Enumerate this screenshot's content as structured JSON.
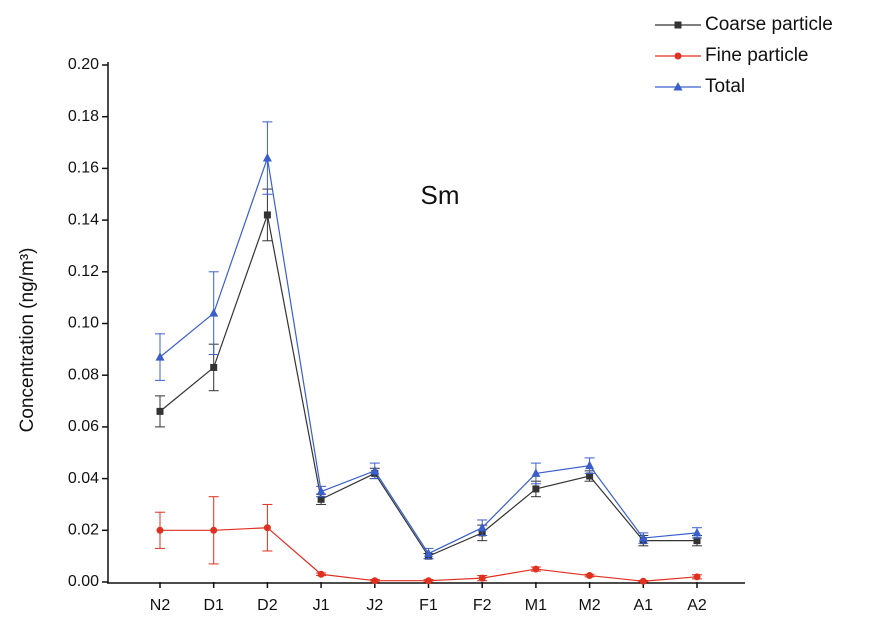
{
  "chart_data": {
    "type": "line",
    "title": "Sm",
    "y_label": "Concentration (ng/m³)",
    "categories": [
      "N2",
      "D1",
      "D2",
      "J1",
      "J2",
      "F1",
      "F2",
      "M1",
      "M2",
      "A1",
      "A2"
    ],
    "series": [
      {
        "name": "Coarse particle",
        "color": "#333333",
        "marker": "square",
        "values": [
          0.066,
          0.083,
          0.142,
          0.032,
          0.042,
          0.01,
          0.019,
          0.036,
          0.041,
          0.016,
          0.016
        ],
        "errors": [
          0.006,
          0.009,
          0.01,
          0.002,
          0.002,
          0.001,
          0.003,
          0.003,
          0.002,
          0.002,
          0.002
        ]
      },
      {
        "name": "Fine particle",
        "color": "#e03020",
        "marker": "circle",
        "values": [
          0.02,
          0.02,
          0.021,
          0.003,
          0.0005,
          0.0005,
          0.0015,
          0.005,
          0.0025,
          0.0003,
          0.002
        ],
        "errors": [
          0.007,
          0.013,
          0.009,
          0.0005,
          0.0005,
          0.0005,
          0.001,
          0.0008,
          0.0005,
          0.0003,
          0.0008
        ]
      },
      {
        "name": "Total",
        "color": "#3a5fcd",
        "marker": "triangle",
        "values": [
          0.087,
          0.104,
          0.164,
          0.035,
          0.043,
          0.011,
          0.021,
          0.042,
          0.045,
          0.017,
          0.019
        ],
        "errors": [
          0.009,
          0.016,
          0.014,
          0.002,
          0.003,
          0.002,
          0.003,
          0.004,
          0.003,
          0.002,
          0.002
        ]
      }
    ],
    "ylim": [
      0,
      0.2
    ],
    "yticks": [
      {
        "value": 0,
        "label": "0.00"
      },
      {
        "value": 0.02,
        "label": "0.02"
      },
      {
        "value": 0.04,
        "label": "0.04"
      },
      {
        "value": 0.06,
        "label": "0.06"
      },
      {
        "value": 0.08,
        "label": "0.08"
      },
      {
        "value": 0.1,
        "label": "0.10"
      },
      {
        "value": 0.12,
        "label": "0.12"
      },
      {
        "value": 0.14,
        "label": "0.14"
      },
      {
        "value": 0.16,
        "label": "0.16"
      },
      {
        "value": 0.18,
        "label": "0.18"
      },
      {
        "value": 0.2,
        "label": "0.20"
      }
    ],
    "grid": false,
    "legend": "top-right"
  }
}
